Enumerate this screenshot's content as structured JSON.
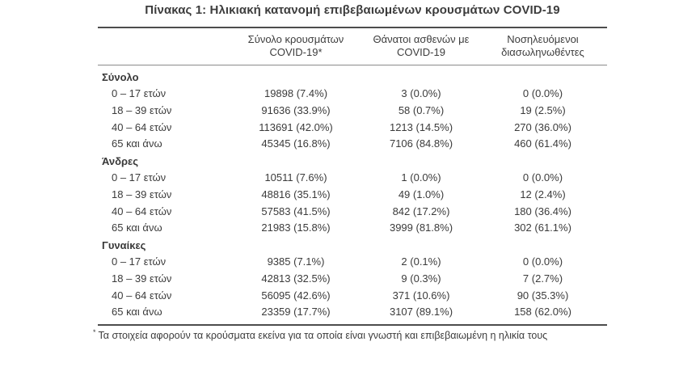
{
  "title": "Πίνακας 1: Ηλικιακή κατανομή επιβεβαιωμένων κρουσμάτων COVID-19",
  "table": {
    "col_headers": [
      {
        "line1": "Σύνολο κρουσμάτων",
        "line2": "COVID-19*"
      },
      {
        "line1": "Θάνατοι ασθενών με",
        "line2": "COVID-19"
      },
      {
        "line1": "Νοσηλευόμενοι",
        "line2": "διασωληνωθέντες"
      }
    ],
    "sections": [
      {
        "label": "Σύνολο",
        "rows": [
          {
            "label": "0 – 17 ετών",
            "cases": "19898 (7.4%)",
            "deaths": "3 (0.0%)",
            "intubated": "0 (0.0%)"
          },
          {
            "label": "18 – 39 ετών",
            "cases": "91636 (33.9%)",
            "deaths": "58 (0.7%)",
            "intubated": "19 (2.5%)"
          },
          {
            "label": "40 – 64 ετών",
            "cases": "113691 (42.0%)",
            "deaths": "1213 (14.5%)",
            "intubated": "270 (36.0%)"
          },
          {
            "label": "65 και άνω",
            "cases": "45345 (16.8%)",
            "deaths": "7106 (84.8%)",
            "intubated": "460 (61.4%)"
          }
        ]
      },
      {
        "label": "Άνδρες",
        "rows": [
          {
            "label": "0 – 17 ετών",
            "cases": "10511 (7.6%)",
            "deaths": "1 (0.0%)",
            "intubated": "0 (0.0%)"
          },
          {
            "label": "18 – 39 ετών",
            "cases": "48816 (35.1%)",
            "deaths": "49 (1.0%)",
            "intubated": "12 (2.4%)"
          },
          {
            "label": "40 – 64 ετών",
            "cases": "57583 (41.5%)",
            "deaths": "842 (17.2%)",
            "intubated": "180 (36.4%)"
          },
          {
            "label": "65 και άνω",
            "cases": "21983 (15.8%)",
            "deaths": "3999 (81.8%)",
            "intubated": "302 (61.1%)"
          }
        ]
      },
      {
        "label": "Γυναίκες",
        "rows": [
          {
            "label": "0 – 17 ετών",
            "cases": "9385 (7.1%)",
            "deaths": "2 (0.1%)",
            "intubated": "0 (0.0%)"
          },
          {
            "label": "18 – 39 ετών",
            "cases": "42813 (32.5%)",
            "deaths": "9 (0.3%)",
            "intubated": "7 (2.7%)"
          },
          {
            "label": "40 – 64 ετών",
            "cases": "56095 (42.6%)",
            "deaths": "371 (10.6%)",
            "intubated": "90 (35.3%)"
          },
          {
            "label": "65 και άνω",
            "cases": "23359 (17.7%)",
            "deaths": "3107 (89.1%)",
            "intubated": "158 (62.0%)"
          }
        ]
      }
    ],
    "footnote_marker": "*",
    "footnote": "Τα στοιχεία αφορούν τα κρούσματα εκείνα για τα οποία είναι γνωστή και επιβεβαιωμένη η ηλικία τους"
  },
  "colors": {
    "text": "#3b3b3b",
    "border_heavy": "#4d4d4d",
    "border_light": "#8a8a8a",
    "background": "#ffffff"
  }
}
